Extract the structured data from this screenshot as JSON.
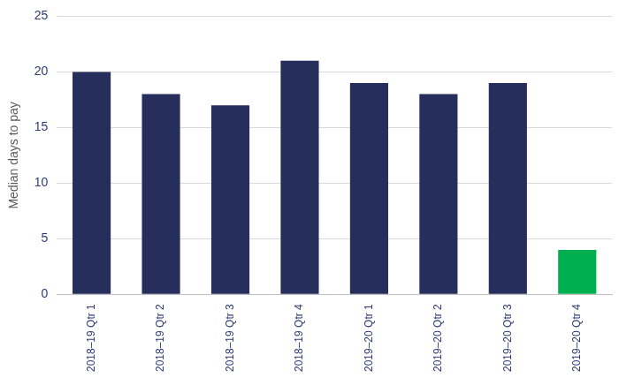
{
  "chart_data": {
    "type": "bar",
    "y_label": "Median days to pay",
    "categories": [
      "2018–19 Qtr 1",
      "2018–19 Qtr 2",
      "2018–19 Qtr 3",
      "2018–19 Qtr 4",
      "2019–20 Qtr 1",
      "2019–20 Qtr 2",
      "2019–20 Qtr 3",
      "2019–20 Qtr 4"
    ],
    "values": [
      20,
      18,
      17,
      21,
      19,
      18,
      19,
      4
    ],
    "colors": [
      "#262e5c",
      "#262e5c",
      "#262e5c",
      "#262e5c",
      "#262e5c",
      "#262e5c",
      "#262e5c",
      "#00b050"
    ],
    "ylim": [
      0,
      25
    ],
    "yticks": [
      0,
      5,
      10,
      15,
      20,
      25
    ],
    "grid": true
  }
}
